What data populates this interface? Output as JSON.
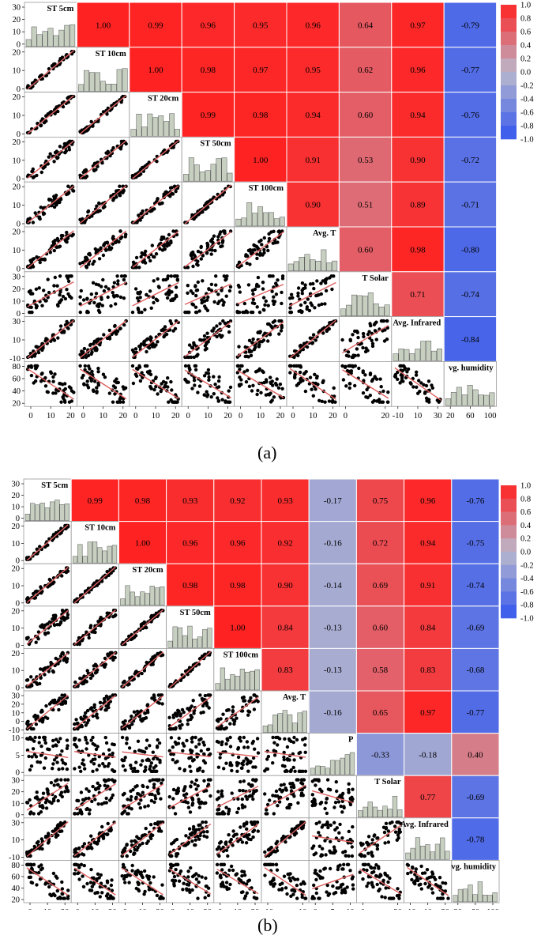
{
  "colors": {
    "pos_strong": "#ff2222",
    "neg_strong": "#3355ee",
    "neutral": "#b8b8cc",
    "hist_fill": "#c6cfc0",
    "scatter_point": "#000000",
    "fit_line": "#e06060"
  },
  "panels": [
    {
      "panel_label": "(a)",
      "variables": [
        "ST 5cm",
        "ST 10cm",
        "ST 20cm",
        "ST 50cm",
        "ST 100cm",
        "Avg. T",
        "T Solar",
        "Avg. Infrared",
        "vg. humidity"
      ],
      "y_axis_ticks": [
        [
          "30",
          "20",
          "10",
          "0"
        ],
        [
          "20",
          "10",
          "0"
        ],
        [
          "20",
          "10",
          "0"
        ],
        [
          "20",
          "10",
          "0"
        ],
        [
          "20",
          "10",
          "0"
        ],
        [
          "20",
          "10",
          "0"
        ],
        [
          "30",
          "20",
          "10",
          "0"
        ],
        [
          "30",
          "10",
          "-10"
        ],
        [
          "80",
          "60",
          "40",
          "20"
        ]
      ],
      "x_axis_ticks": [
        [
          "0",
          "10",
          "20"
        ],
        [
          "0",
          "10",
          "20"
        ],
        [
          "0",
          "10",
          "20"
        ],
        [
          "0",
          "10",
          "20"
        ],
        [
          "0",
          "10",
          "20"
        ],
        [
          "0",
          "10",
          "20"
        ],
        [
          "0",
          "20"
        ],
        [
          "-10",
          "10",
          "30"
        ],
        [
          "20",
          "60",
          "100"
        ]
      ],
      "colorbar_ticks": [
        "1.0",
        "0.8",
        "0.6",
        "0.4",
        "0.2",
        "0.0",
        "-0.2",
        "-0.4",
        "-0.6",
        "-0.8",
        "-1.0"
      ]
    },
    {
      "panel_label": "(b)",
      "variables": [
        "ST 5cm",
        "ST 10cm",
        "ST 20cm",
        "ST 50cm",
        "ST 100cm",
        "Avg. T",
        "P",
        "T Solar",
        "Avg. Infrared",
        "vg. humidity"
      ],
      "y_axis_ticks": [
        [
          "30",
          "20",
          "10",
          "0"
        ],
        [
          "20",
          "10",
          "0"
        ],
        [
          "20",
          "10",
          "0"
        ],
        [
          "20",
          "10",
          "0"
        ],
        [
          "20",
          "10",
          "0"
        ],
        [
          "30",
          "20",
          "10",
          "0",
          "-10"
        ],
        [
          "10",
          "5",
          "0"
        ],
        [
          "30",
          "20",
          "10",
          "0"
        ],
        [
          "30",
          "10",
          "-10"
        ],
        [
          "80",
          "60",
          "40",
          "20"
        ]
      ],
      "x_axis_ticks": [
        [
          "0",
          "10",
          "20"
        ],
        [
          "0",
          "10",
          "20"
        ],
        [
          "0",
          "10",
          "20"
        ],
        [
          "0",
          "10",
          "20"
        ],
        [
          "0",
          "10",
          "20"
        ],
        [
          "-10",
          "10"
        ],
        [
          "0",
          "5",
          "10"
        ],
        [
          "0",
          "20"
        ],
        [
          "-10",
          "10",
          "30"
        ],
        [
          "20",
          "60",
          "100"
        ]
      ],
      "colorbar_ticks": [
        "1.0",
        "0.8",
        "0.6",
        "0.4",
        "0.2",
        "0.0",
        "-0.2",
        "-0.4",
        "-0.6",
        "-0.8",
        "-1.0"
      ]
    }
  ],
  "chart_data": [
    {
      "type": "heatmap",
      "variables": [
        "ST 5cm",
        "ST 10cm",
        "ST 20cm",
        "ST 50cm",
        "ST 100cm",
        "Avg. T",
        "T Solar",
        "Avg. Infrared",
        "vg. humidity"
      ],
      "upper_triangle_correlations": [
        [
          "1.00",
          "0.99",
          "0.96",
          "0.95",
          "0.96",
          "0.64",
          "0.97",
          "-0.79"
        ],
        [
          "1.00",
          "0.98",
          "0.97",
          "0.95",
          "0.62",
          "0.96",
          "-0.77"
        ],
        [
          "0.99",
          "0.98",
          "0.94",
          "0.60",
          "0.94",
          "-0.76"
        ],
        [
          "1.00",
          "0.91",
          "0.53",
          "0.90",
          "-0.72"
        ],
        [
          "0.90",
          "0.51",
          "0.89",
          "-0.71"
        ],
        [
          "0.60",
          "0.98",
          "-0.80"
        ],
        [
          "0.71",
          "-0.74"
        ],
        [
          "-0.84"
        ]
      ],
      "colorbar_range": [
        -1.0,
        1.0
      ]
    },
    {
      "type": "heatmap",
      "variables": [
        "ST 5cm",
        "ST 10cm",
        "ST 20cm",
        "ST 50cm",
        "ST 100cm",
        "Avg. T",
        "P",
        "T Solar",
        "Avg. Infrared",
        "vg. humidity"
      ],
      "upper_triangle_correlations": [
        [
          "0.99",
          "0.98",
          "0.93",
          "0.92",
          "0.93",
          "-0.17",
          "0.75",
          "0.96",
          "-0.76"
        ],
        [
          "1.00",
          "0.96",
          "0.96",
          "0.92",
          "-0.16",
          "0.72",
          "0.94",
          "-0.75"
        ],
        [
          "0.98",
          "0.98",
          "0.90",
          "-0.14",
          "0.69",
          "0.91",
          "-0.74"
        ],
        [
          "1.00",
          "0.84",
          "-0.13",
          "0.60",
          "0.84",
          "-0.69"
        ],
        [
          "0.83",
          "-0.13",
          "0.58",
          "0.83",
          "-0.68"
        ],
        [
          "-0.16",
          "0.65",
          "0.97",
          "-0.77"
        ],
        [
          "-0.33",
          "-0.18",
          "0.40"
        ],
        [
          "0.77",
          "-0.69"
        ],
        [
          "-0.78"
        ]
      ],
      "colorbar_range": [
        -1.0,
        1.0
      ]
    }
  ]
}
